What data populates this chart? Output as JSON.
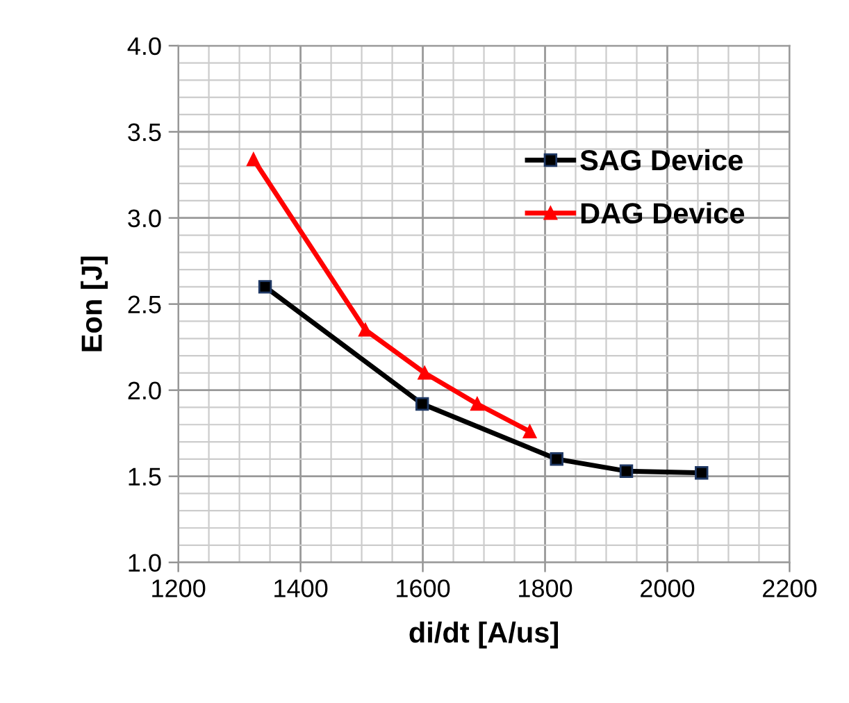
{
  "chart_data": {
    "type": "line",
    "xlabel": "di/dt [A/us]",
    "ylabel": "Eon [J]",
    "series": [
      {
        "name": "SAG Device",
        "color": "#000000",
        "marker": "square",
        "x": [
          1342,
          1599,
          1819,
          1933,
          2056
        ],
        "values": [
          2.6,
          1.92,
          1.6,
          1.53,
          1.52
        ]
      },
      {
        "name": "DAG Device",
        "color": "#ff0000",
        "marker": "triangle",
        "x": [
          1323,
          1506,
          1603,
          1689,
          1775
        ],
        "values": [
          3.34,
          2.35,
          2.1,
          1.92,
          1.76
        ]
      }
    ],
    "xlim": [
      1200,
      2200
    ],
    "xticks": [
      1200,
      1400,
      1600,
      1800,
      2000,
      2200
    ],
    "ylim": [
      1.0,
      4.0
    ],
    "yticks": [
      {
        "value": 1.0,
        "label": "1.0"
      },
      {
        "value": 1.5,
        "label": "1.5"
      },
      {
        "value": 2.0,
        "label": "2.0"
      },
      {
        "value": 2.5,
        "label": "2.5"
      },
      {
        "value": 3.0,
        "label": "3.0"
      },
      {
        "value": 3.5,
        "label": "3.5"
      },
      {
        "value": 4.0,
        "label": "4.0"
      }
    ],
    "grid": true,
    "legend": "top right",
    "line_style": "solid"
  }
}
